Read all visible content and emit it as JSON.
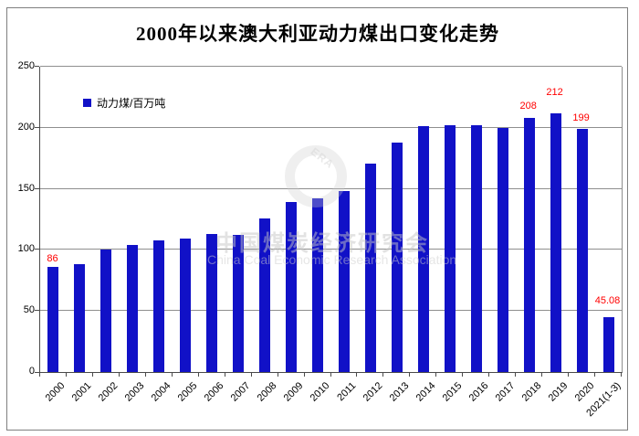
{
  "title": "2000年以来澳大利亚动力煤出口变化走势",
  "legend": {
    "label": "动力煤/百万吨"
  },
  "watermark": {
    "logo_text": "ERA",
    "line1": "中国煤炭经济研究会",
    "line2": "China Coal Economic Research Association"
  },
  "chart_data": {
    "type": "bar",
    "title": "2000年以来澳大利亚动力煤出口变化走势",
    "categories": [
      "2000",
      "2001",
      "2002",
      "2003",
      "2004",
      "2005",
      "2006",
      "2007",
      "2008",
      "2009",
      "2010",
      "2011",
      "2012",
      "2013",
      "2014",
      "2015",
      "2016",
      "2017",
      "2018",
      "2019",
      "2020",
      "2021(1-3)"
    ],
    "values": [
      86,
      88,
      100,
      104,
      108,
      109,
      113,
      112,
      126,
      139,
      142,
      148,
      171,
      188,
      201,
      202,
      202,
      200,
      208,
      212,
      199,
      45.08
    ],
    "series_name": "动力煤/百万吨",
    "bar_color": "#1111c7",
    "label_color": "#ff0000",
    "grid": true,
    "gridline_color": "#8f8f8f",
    "ylim": [
      0,
      250
    ],
    "yticks": [
      0,
      50,
      100,
      150,
      200,
      250
    ],
    "legend_position": "top-left-inside",
    "data_labels": [
      {
        "index": 0,
        "text": "86",
        "gap": 3
      },
      {
        "index": 18,
        "text": "208",
        "gap": 7
      },
      {
        "index": 19,
        "text": "212",
        "gap": 17
      },
      {
        "index": 20,
        "text": "199",
        "gap": 6
      },
      {
        "index": 21,
        "text": "45.08",
        "gap": 12
      }
    ]
  }
}
